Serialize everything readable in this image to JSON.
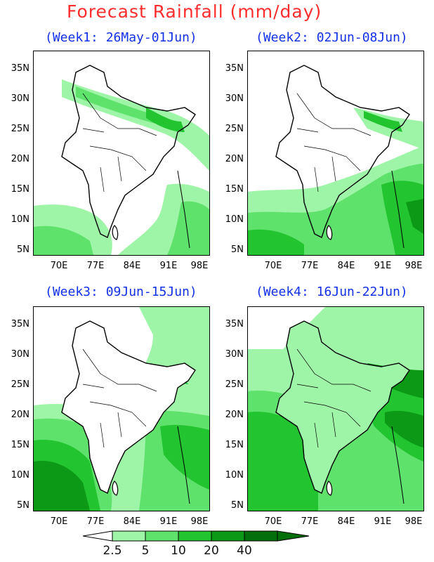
{
  "title": "Forecast Rainfall (mm/day)",
  "panels": [
    {
      "title": "(Week1: 26May-01Jun)"
    },
    {
      "title": "(Week2: 02Jun-08Jun)"
    },
    {
      "title": "(Week3: 09Jun-15Jun)"
    },
    {
      "title": "(Week4: 16Jun-22Jun)"
    }
  ],
  "axis": {
    "y_ticks": [
      "35N",
      "30N",
      "25N",
      "20N",
      "15N",
      "10N",
      "5N"
    ],
    "x_ticks": [
      "70E",
      "77E",
      "84E",
      "91E",
      "98E"
    ]
  },
  "legend": {
    "ticks": [
      "2.5",
      "5",
      "10",
      "20",
      "40"
    ],
    "colors": [
      "#ffffff",
      "#9ff5a7",
      "#5fe26b",
      "#22c430",
      "#0c9a16",
      "#036f0a"
    ]
  },
  "colors": {
    "title": "#ff2d2d",
    "panel_title": "#1230e8"
  }
}
